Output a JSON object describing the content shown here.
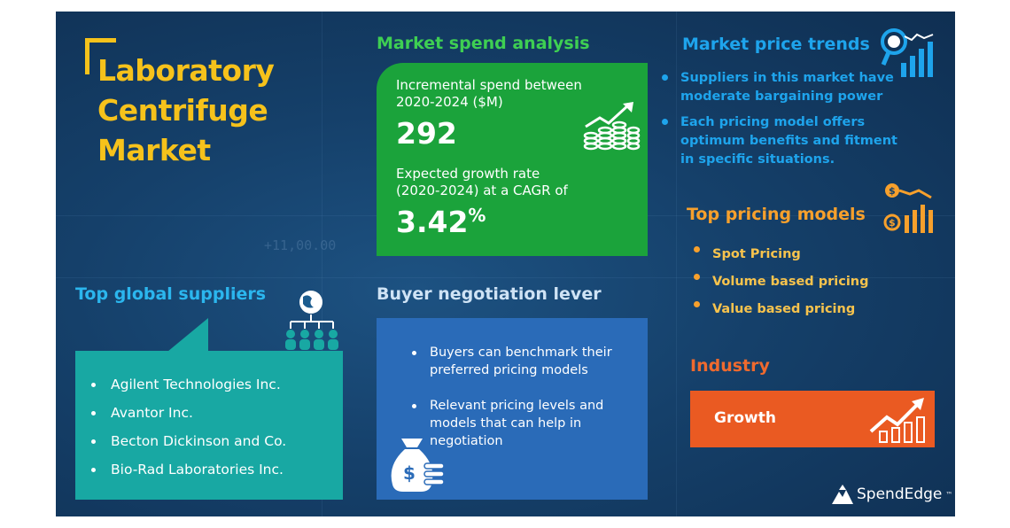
{
  "title": {
    "line1": "Laboratory",
    "line2": "Centrifuge",
    "line3": "Market"
  },
  "spend": {
    "heading": "Market spend analysis",
    "incremental_label_1": "Incremental spend between",
    "incremental_label_2": "2020-2024 ($M)",
    "incremental_value": "292",
    "growth_label_1": "Expected growth rate",
    "growth_label_2": "(2020-2024) at a CAGR of",
    "growth_value": "3.42",
    "growth_unit": "%"
  },
  "trends": {
    "heading": "Market price trends",
    "item1_line1": "Suppliers in this market have",
    "item1_line2": "moderate bargaining power",
    "item2_line1": "Each pricing model offers",
    "item2_line2": "optimum benefits and fitment",
    "item2_line3": "in specific situations."
  },
  "pricing_models": {
    "heading": "Top pricing models",
    "items": [
      "Spot Pricing",
      "Volume based pricing",
      "Value based pricing"
    ]
  },
  "suppliers": {
    "heading": "Top global suppliers",
    "items": [
      "Agilent Technologies Inc.",
      "Avantor Inc.",
      "Becton Dickinson and Co.",
      "Bio-Rad Laboratories Inc."
    ]
  },
  "buyer": {
    "heading": "Buyer negotiation lever",
    "item1_line1": "Buyers can benchmark their",
    "item1_line2": "preferred pricing models",
    "item2_line1": "Relevant pricing levels and",
    "item2_line2": "models that can help in",
    "item2_line3": "negotiation"
  },
  "industry": {
    "heading": "Industry",
    "label": "Growth"
  },
  "brand": {
    "name": "SpendEdge",
    "mark": "™"
  },
  "background_text": "+11,00.00",
  "colors": {
    "background": "#15406a",
    "title": "#f6c21b",
    "green": "#1ba33b",
    "blue": "#1ea4ec",
    "orange": "#f7a02c",
    "teal": "#18a8a3",
    "buyer_blue": "#2a6bb8",
    "growth": "#ea5a22"
  },
  "icons": [
    "coin-stack-growth-icon",
    "magnifier-chart-icon",
    "dollar-chart-icon",
    "globe-network-icon",
    "money-bag-icon",
    "growth-chart-icon",
    "spendedge-logo-icon"
  ]
}
